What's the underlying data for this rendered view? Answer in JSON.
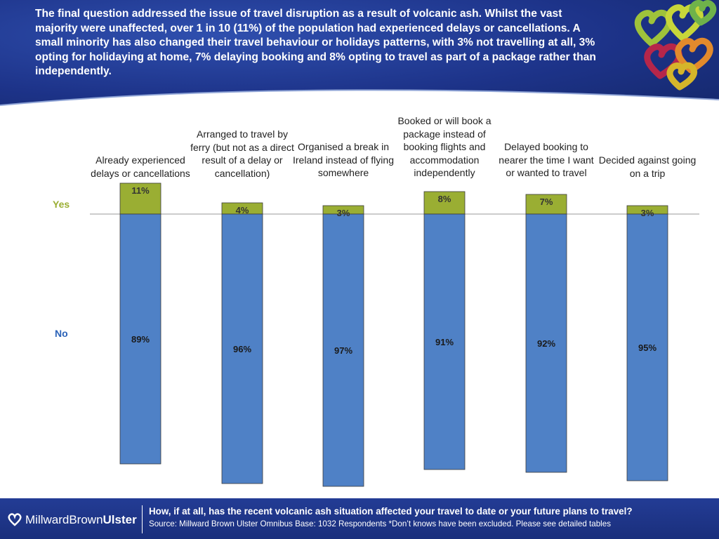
{
  "header": {
    "intro_text": "The final question addressed the issue of travel disruption as a result of volcanic ash.   Whilst the vast majority were unaffected, over 1 in 10 (11%) of the population had experienced delays or cancellations.  A small minority has also changed their travel  behaviour or holidays patterns, with 3% not travelling at all, 3% opting for  holidaying at home, 7% delaying booking and 8% opting to travel as part of a package rather than independently."
  },
  "chart_data": {
    "type": "bar",
    "stacked": true,
    "categories": [
      "Already experienced delays or cancellations",
      "Arranged to travel by ferry (but not as a direct result of a delay or cancellation)",
      "Organised a break in Ireland instead of flying somewhere",
      "Booked or will book a package instead of booking flights and accommodation independently",
      "Delayed booking to nearer the time I want or wanted to travel",
      "Decided against going on a trip"
    ],
    "series": [
      {
        "name": "Yes",
        "values": [
          11,
          4,
          3,
          8,
          7,
          3
        ],
        "labels": [
          "11%",
          "4%",
          "3%",
          "8%",
          "7%",
          "3%"
        ],
        "color": "#9aae33"
      },
      {
        "name": "No",
        "values": [
          89,
          96,
          97,
          91,
          92,
          95
        ],
        "labels": [
          "89%",
          "96%",
          "97%",
          "91%",
          "92%",
          "95%"
        ],
        "color": "#4f81c6"
      }
    ],
    "title": "",
    "xlabel": "",
    "ylabel": "",
    "grid": false,
    "legend": "left"
  },
  "colors": {
    "yes": "#9aae33",
    "no": "#4f81c6",
    "header_bg": "#1d3389",
    "footer_bg": "#1f3588"
  },
  "footer": {
    "brand_part1": "Millward",
    "brand_part2": "Brown",
    "brand_part3": "Ulster",
    "question": "How, if at all, has the recent volcanic ash situation affected your travel to date or your future plans to travel?",
    "source": "Source: Millward Brown Ulster Omnibus  Base: 1032 Respondents  *Don’t knows have been excluded.  Please see detailed tables"
  },
  "icons": [
    "heart-logo-icon",
    "brand-heart-icon"
  ]
}
